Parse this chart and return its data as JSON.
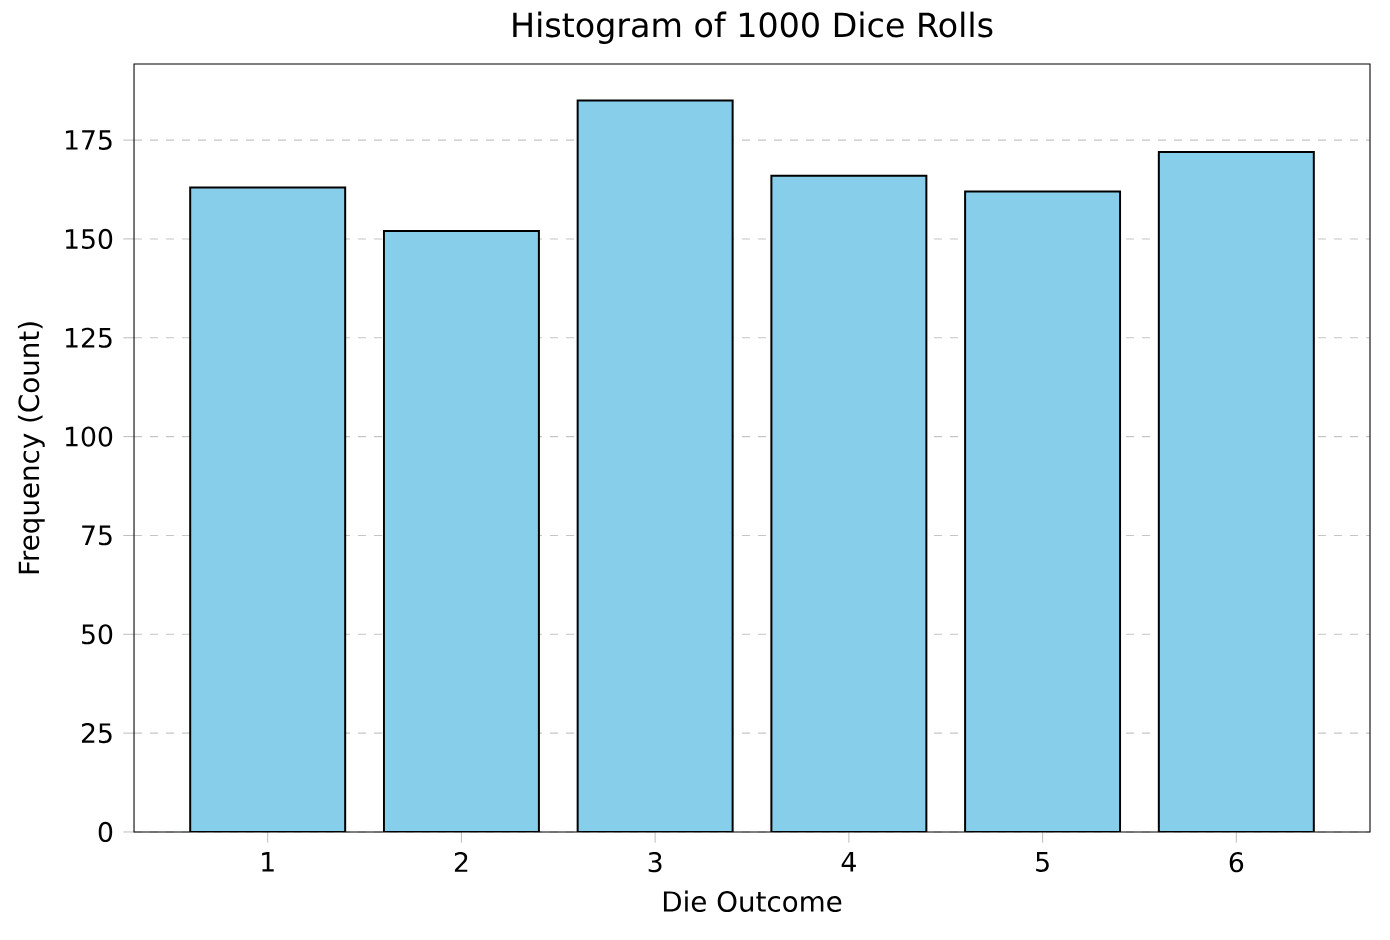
{
  "chart_data": {
    "type": "histogram",
    "title": "Histogram of 1000 Dice Rolls",
    "xlabel": "Die Outcome",
    "ylabel": "Frequency (Count)",
    "bins": [
      0.5,
      1.5,
      2.5,
      3.5,
      4.5,
      5.5,
      6.5
    ],
    "values": [
      163,
      152,
      185,
      166,
      162,
      172
    ],
    "color": "#87ceeb",
    "xlim": [
      0.31,
      6.69
    ],
    "ylim": [
      0,
      194.25
    ],
    "xticks": [
      1,
      2,
      3,
      4,
      5,
      6
    ],
    "yticks": [
      0,
      25,
      50,
      75,
      100,
      125,
      150,
      175
    ],
    "grid": "y"
  }
}
